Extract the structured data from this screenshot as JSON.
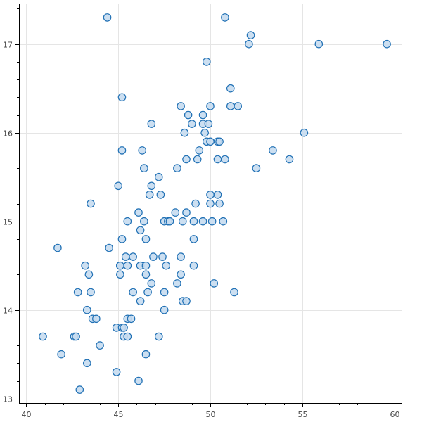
{
  "chart_data": {
    "type": "scatter",
    "title": "",
    "xlabel": "",
    "ylabel": "",
    "xlim": [
      39.6,
      60.4
    ],
    "ylim": [
      12.95,
      17.45
    ],
    "xticks": [
      40,
      45,
      50,
      55,
      60
    ],
    "yticks": [
      13,
      14,
      15,
      16,
      17
    ],
    "grid": true,
    "legend": "none",
    "marker": {
      "shape": "circle",
      "fill": "#c6dbef",
      "stroke": "#2171b5"
    },
    "points": [
      [
        44.4,
        17.3
      ],
      [
        50.8,
        17.3
      ],
      [
        52.1,
        17.0
      ],
      [
        52.2,
        17.1
      ],
      [
        55.9,
        17.0
      ],
      [
        59.6,
        17.0
      ],
      [
        49.8,
        16.8
      ],
      [
        51.1,
        16.5
      ],
      [
        45.2,
        16.4
      ],
      [
        48.4,
        16.3
      ],
      [
        50.0,
        16.3
      ],
      [
        51.1,
        16.3
      ],
      [
        51.5,
        16.3
      ],
      [
        48.8,
        16.2
      ],
      [
        49.6,
        16.2
      ],
      [
        46.8,
        16.1
      ],
      [
        49.0,
        16.1
      ],
      [
        49.6,
        16.1
      ],
      [
        49.9,
        16.1
      ],
      [
        48.6,
        16.0
      ],
      [
        49.7,
        16.0
      ],
      [
        55.1,
        16.0
      ],
      [
        49.8,
        15.9
      ],
      [
        50.0,
        15.9
      ],
      [
        50.4,
        15.9
      ],
      [
        50.5,
        15.9
      ],
      [
        45.2,
        15.8
      ],
      [
        46.3,
        15.8
      ],
      [
        49.4,
        15.8
      ],
      [
        53.4,
        15.8
      ],
      [
        48.7,
        15.7
      ],
      [
        49.3,
        15.7
      ],
      [
        50.4,
        15.7
      ],
      [
        50.8,
        15.7
      ],
      [
        54.3,
        15.7
      ],
      [
        46.4,
        15.6
      ],
      [
        48.2,
        15.6
      ],
      [
        52.5,
        15.6
      ],
      [
        47.2,
        15.5
      ],
      [
        45.0,
        15.4
      ],
      [
        46.8,
        15.4
      ],
      [
        46.7,
        15.3
      ],
      [
        47.3,
        15.3
      ],
      [
        50.0,
        15.3
      ],
      [
        50.4,
        15.3
      ],
      [
        43.5,
        15.2
      ],
      [
        49.2,
        15.2
      ],
      [
        50.0,
        15.2
      ],
      [
        50.5,
        15.2
      ],
      [
        46.1,
        15.1
      ],
      [
        48.1,
        15.1
      ],
      [
        48.7,
        15.1
      ],
      [
        45.5,
        15.0
      ],
      [
        46.4,
        15.0
      ],
      [
        47.5,
        15.0
      ],
      [
        47.7,
        15.0
      ],
      [
        47.8,
        15.0
      ],
      [
        48.5,
        15.0
      ],
      [
        49.1,
        15.0
      ],
      [
        49.6,
        15.0
      ],
      [
        50.1,
        15.0
      ],
      [
        50.7,
        15.0
      ],
      [
        46.2,
        14.9
      ],
      [
        45.2,
        14.8
      ],
      [
        46.5,
        14.8
      ],
      [
        49.1,
        14.8
      ],
      [
        41.7,
        14.7
      ],
      [
        44.5,
        14.7
      ],
      [
        45.4,
        14.6
      ],
      [
        45.8,
        14.6
      ],
      [
        46.9,
        14.6
      ],
      [
        47.4,
        14.6
      ],
      [
        48.4,
        14.6
      ],
      [
        43.2,
        14.5
      ],
      [
        45.1,
        14.5
      ],
      [
        45.1,
        14.5
      ],
      [
        45.5,
        14.5
      ],
      [
        46.2,
        14.5
      ],
      [
        46.5,
        14.5
      ],
      [
        47.6,
        14.5
      ],
      [
        49.1,
        14.5
      ],
      [
        43.4,
        14.4
      ],
      [
        45.1,
        14.4
      ],
      [
        46.5,
        14.4
      ],
      [
        48.4,
        14.4
      ],
      [
        46.8,
        14.3
      ],
      [
        48.2,
        14.3
      ],
      [
        50.2,
        14.3
      ],
      [
        42.8,
        14.2
      ],
      [
        43.5,
        14.2
      ],
      [
        45.8,
        14.2
      ],
      [
        46.6,
        14.2
      ],
      [
        47.5,
        14.2
      ],
      [
        51.3,
        14.2
      ],
      [
        46.2,
        14.1
      ],
      [
        48.5,
        14.1
      ],
      [
        48.7,
        14.1
      ],
      [
        43.3,
        14.0
      ],
      [
        47.5,
        14.0
      ],
      [
        43.6,
        13.9
      ],
      [
        43.8,
        13.9
      ],
      [
        45.5,
        13.9
      ],
      [
        45.7,
        13.9
      ],
      [
        44.9,
        13.8
      ],
      [
        45.2,
        13.8
      ],
      [
        45.3,
        13.8
      ],
      [
        40.9,
        13.7
      ],
      [
        42.6,
        13.7
      ],
      [
        42.7,
        13.7
      ],
      [
        45.3,
        13.7
      ],
      [
        45.5,
        13.7
      ],
      [
        47.2,
        13.7
      ],
      [
        44.0,
        13.6
      ],
      [
        41.9,
        13.5
      ],
      [
        46.5,
        13.5
      ],
      [
        43.3,
        13.4
      ],
      [
        44.9,
        13.3
      ],
      [
        46.1,
        13.2
      ],
      [
        42.9,
        13.1
      ]
    ]
  }
}
